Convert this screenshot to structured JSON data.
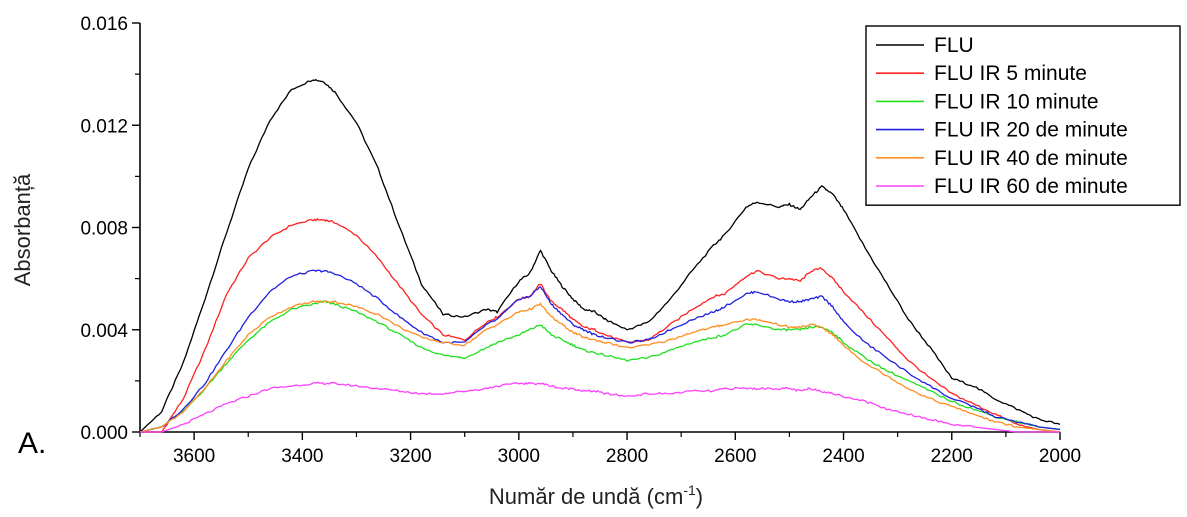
{
  "panel_label": "A.",
  "chart_data": {
    "type": "line",
    "title": "",
    "xlabel": "Număr de undă (cm",
    "xlabel_sup": "-1",
    "xlabel_suffix": ")",
    "ylabel": "Absorbanță",
    "xlim": [
      3700,
      2000
    ],
    "ylim": [
      0,
      0.016
    ],
    "x_reversed": true,
    "x_ticks": [
      3600,
      3400,
      3200,
      3000,
      2800,
      2600,
      2400,
      2200,
      2000
    ],
    "y_ticks": [
      0.0,
      0.004,
      0.008,
      0.012,
      0.016
    ],
    "y_tick_labels": [
      "0.000",
      "0.004",
      "0.008",
      "0.012",
      "0.016"
    ],
    "grid": false,
    "legend_position": "top-right",
    "x": [
      3700,
      3660,
      3620,
      3580,
      3540,
      3500,
      3460,
      3420,
      3380,
      3360,
      3340,
      3300,
      3260,
      3220,
      3180,
      3140,
      3100,
      3060,
      3040,
      3000,
      2980,
      2960,
      2940,
      2920,
      2900,
      2880,
      2860,
      2840,
      2800,
      2760,
      2720,
      2680,
      2640,
      2620,
      2580,
      2560,
      2520,
      2500,
      2480,
      2460,
      2440,
      2420,
      2400,
      2360,
      2320,
      2280,
      2240,
      2200,
      2160,
      2120,
      2080,
      2040,
      2000
    ],
    "series": [
      {
        "name": "FLU",
        "color": "#000000",
        "values": [
          0.0,
          0.0008,
          0.0027,
          0.0052,
          0.0078,
          0.0103,
          0.0122,
          0.0134,
          0.0138,
          0.0137,
          0.0133,
          0.0121,
          0.0103,
          0.008,
          0.0058,
          0.0046,
          0.0045,
          0.0048,
          0.0047,
          0.0059,
          0.0062,
          0.0071,
          0.0063,
          0.0057,
          0.0052,
          0.0048,
          0.0047,
          0.0044,
          0.004,
          0.0043,
          0.0052,
          0.0063,
          0.0073,
          0.0077,
          0.0088,
          0.009,
          0.0088,
          0.0089,
          0.0087,
          0.0092,
          0.0096,
          0.0093,
          0.0087,
          0.0072,
          0.0058,
          0.0044,
          0.0033,
          0.0021,
          0.0018,
          0.0013,
          0.0009,
          0.0005,
          0.0003
        ]
      },
      {
        "name": "FLU IR 5 minute",
        "color": "#ff2020",
        "values": [
          0.0,
          0.0,
          0.0013,
          0.0032,
          0.0054,
          0.0068,
          0.0076,
          0.0081,
          0.0083,
          0.0083,
          0.0082,
          0.0077,
          0.0068,
          0.0057,
          0.0046,
          0.0038,
          0.0036,
          0.0043,
          0.0045,
          0.0052,
          0.0053,
          0.0058,
          0.0051,
          0.0048,
          0.0044,
          0.0041,
          0.004,
          0.0038,
          0.0035,
          0.0036,
          0.0042,
          0.0048,
          0.0053,
          0.0054,
          0.0061,
          0.0063,
          0.006,
          0.006,
          0.0059,
          0.0063,
          0.0064,
          0.006,
          0.0055,
          0.0046,
          0.0037,
          0.0028,
          0.0021,
          0.0015,
          0.0011,
          0.0007,
          0.0003,
          0.0001,
          0.0
        ]
      },
      {
        "name": "FLU IR 10 minute",
        "color": "#20e020",
        "values": [
          0.0,
          0.0002,
          0.0008,
          0.0017,
          0.0027,
          0.0036,
          0.0043,
          0.0048,
          0.005,
          0.0051,
          0.005,
          0.0047,
          0.0043,
          0.0038,
          0.0033,
          0.003,
          0.0029,
          0.0033,
          0.0035,
          0.0038,
          0.004,
          0.0042,
          0.0038,
          0.0036,
          0.0034,
          0.0032,
          0.0031,
          0.003,
          0.0028,
          0.0029,
          0.0032,
          0.0035,
          0.0037,
          0.0038,
          0.0042,
          0.0042,
          0.004,
          0.004,
          0.004,
          0.0041,
          0.0041,
          0.0039,
          0.0035,
          0.0029,
          0.0024,
          0.002,
          0.0016,
          0.0012,
          0.0009,
          0.0006,
          0.0004,
          0.0002,
          0.0001
        ]
      },
      {
        "name": "FLU IR 20 de minute",
        "color": "#2020e0",
        "values": [
          0.0,
          0.0002,
          0.0009,
          0.0019,
          0.0032,
          0.0045,
          0.0055,
          0.0061,
          0.0063,
          0.0063,
          0.0062,
          0.0058,
          0.0052,
          0.0045,
          0.0039,
          0.0035,
          0.0035,
          0.0042,
          0.0044,
          0.0052,
          0.0053,
          0.0057,
          0.005,
          0.0046,
          0.0042,
          0.004,
          0.0038,
          0.0037,
          0.0035,
          0.0036,
          0.004,
          0.0044,
          0.0047,
          0.0049,
          0.0054,
          0.0055,
          0.0052,
          0.0051,
          0.0051,
          0.0052,
          0.0053,
          0.0049,
          0.0043,
          0.0035,
          0.0029,
          0.0023,
          0.0018,
          0.0013,
          0.001,
          0.0006,
          0.0004,
          0.0002,
          0.0001
        ]
      },
      {
        "name": "FLU IR 40 de minute",
        "color": "#ff8c20",
        "values": [
          0.0,
          0.0002,
          0.0008,
          0.0017,
          0.0028,
          0.0038,
          0.0045,
          0.0049,
          0.0051,
          0.0051,
          0.0051,
          0.0049,
          0.0046,
          0.0041,
          0.0037,
          0.0035,
          0.0034,
          0.004,
          0.0042,
          0.0047,
          0.0048,
          0.005,
          0.0045,
          0.0042,
          0.0039,
          0.0037,
          0.0036,
          0.0035,
          0.0033,
          0.0034,
          0.0036,
          0.0039,
          0.0041,
          0.0042,
          0.0044,
          0.0044,
          0.0042,
          0.0041,
          0.0041,
          0.0042,
          0.0041,
          0.0038,
          0.0034,
          0.0027,
          0.0022,
          0.0017,
          0.0013,
          0.001,
          0.0007,
          0.0004,
          0.0002,
          0.0001,
          0.0
        ]
      },
      {
        "name": "FLU IR 60 de minute",
        "color": "#ff40ff",
        "values": [
          0.0,
          0.0,
          0.0003,
          0.0007,
          0.0011,
          0.0014,
          0.0017,
          0.0018,
          0.0019,
          0.0019,
          0.0019,
          0.0018,
          0.0017,
          0.0016,
          0.0015,
          0.0015,
          0.0016,
          0.0017,
          0.0018,
          0.0019,
          0.0019,
          0.0019,
          0.0018,
          0.0017,
          0.0017,
          0.0016,
          0.0016,
          0.0015,
          0.0014,
          0.0015,
          0.0015,
          0.0016,
          0.0016,
          0.0017,
          0.0017,
          0.0017,
          0.0017,
          0.0017,
          0.0016,
          0.0017,
          0.0016,
          0.0015,
          0.0014,
          0.0012,
          0.0009,
          0.0007,
          0.0005,
          0.0003,
          0.0002,
          0.0001,
          0.0,
          0.0,
          0.0
        ]
      }
    ]
  }
}
